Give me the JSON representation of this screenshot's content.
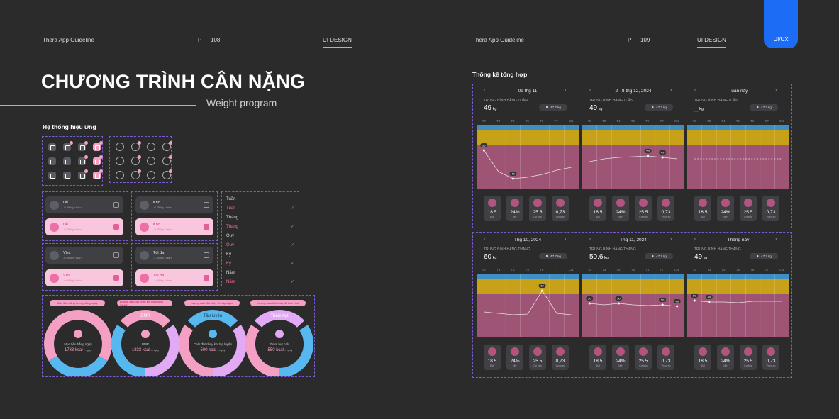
{
  "left_header": {
    "brand": "Thera App Guideline",
    "page_label": "P",
    "page_num": "108",
    "section": "UI DESIGN"
  },
  "right_header": {
    "brand": "Thera App Guideline",
    "page_label": "P",
    "page_num": "109",
    "section": "UI DESIGN"
  },
  "tab_label": "UI/UX",
  "title": "CHƯƠNG TRÌNH CÂN NẶNG",
  "subtitle": "Weight program",
  "effects_heading": "Hệ thống hiệu ứng",
  "stats_heading": "Thống kê tổng hợp",
  "difficulty_cards": [
    {
      "label": "Dễ",
      "sub": "-0.25 kg / tuần",
      "selected": false
    },
    {
      "label": "Khó",
      "sub": "-0.75 kg / tuần",
      "selected": false
    },
    {
      "label": "Dễ",
      "sub": "-0.25 kg / tuần",
      "selected": true
    },
    {
      "label": "Khó",
      "sub": "-0.75 kg / tuần",
      "selected": true
    },
    {
      "label": "Vừa",
      "sub": "-0.50 kg / tuần",
      "selected": false
    },
    {
      "label": "Tối đa",
      "sub": "-1.00 kg / tuần",
      "selected": false
    },
    {
      "label": "Vừa",
      "sub": "-0.50 kg / tuần",
      "selected": true
    },
    {
      "label": "Tối đa",
      "sub": "-1.00 kg / tuần",
      "selected": true
    }
  ],
  "period_list": [
    {
      "label": "Tuần",
      "selected": false
    },
    {
      "label": "Tuần",
      "selected": true
    },
    {
      "label": "Tháng",
      "selected": false
    },
    {
      "label": "Tháng",
      "selected": true
    },
    {
      "label": "Quý",
      "selected": false
    },
    {
      "label": "Quý",
      "selected": true
    },
    {
      "label": "Kỳ",
      "selected": false
    },
    {
      "label": "Kỳ",
      "selected": true
    },
    {
      "label": "Năm",
      "selected": false
    },
    {
      "label": "Năm",
      "selected": true
    }
  ],
  "donuts": [
    {
      "pill": "Mục tiêu năng lượng hằng ngày",
      "top_label": "",
      "center_label": "Mục tiêu hằng ngày",
      "value": "1783 kcal",
      "unit": "/ ngày",
      "accent": "#f4a0c4"
    },
    {
      "pill": "Lượng calo đốt cháy khi nghỉ ngơi (BMR)",
      "top_label": "BMR",
      "center_label": "BMR",
      "value": "1833 kcal",
      "unit": "/ ngày",
      "accent": "#f4a0c4"
    },
    {
      "pill": "Lượng calo đốt cháy khi tập luyện",
      "top_label": "Tập luyện",
      "center_label": "Calo đốt cháy khi tập luyện",
      "value": "500 kcal",
      "unit": "/ ngày",
      "accent": "#64c6f0"
    },
    {
      "pill": "Lượng calo đốt cháy để thâm hụt",
      "top_label": "Thâm hụt",
      "center_label": "Thâm hụt calo",
      "value": "-550 kcal",
      "unit": "/ ngày",
      "accent": "#d9a7f0"
    }
  ],
  "days": [
    "T2",
    "T3",
    "T4",
    "T5",
    "T6",
    "T7",
    "CN"
  ],
  "avg_unit": "kg",
  "panels": [
    {
      "period": "09 thg 11",
      "avg_label": "TRUNG BÌNH HẰNG TUẦN",
      "weight": "49",
      "target": "47.7 kg"
    },
    {
      "period": "2 - 8 thg 12, 2024",
      "avg_label": "TRUNG BÌNH HẰNG TUẦN",
      "weight": "49",
      "target": "47.7 kg"
    },
    {
      "period": "Tuần này",
      "avg_label": "TRUNG BÌNH HẰNG TUẦN",
      "weight": "_",
      "target": "47.7 kg"
    },
    {
      "period": "Thg 10, 2024",
      "avg_label": "TRUNG BÌNH HẰNG THÁNG",
      "weight": "60",
      "target": "47.7 kg"
    },
    {
      "period": "Thg 11, 2024",
      "avg_label": "TRUNG BÌNH HẰNG THÁNG",
      "weight": "50.6",
      "target": "47.7 kg"
    },
    {
      "period": "Tháng này",
      "avg_label": "TRUNG BÌNH HẰNG THÁNG",
      "weight": "49",
      "target": "47.7 kg"
    }
  ],
  "metrics": [
    {
      "value": "18.5",
      "label": "BMI",
      "icon": "person-icon"
    },
    {
      "value": "24%",
      "label": "Mỡ",
      "icon": "fat-icon"
    },
    {
      "value": "25.5",
      "label": "Cơ bắp",
      "icon": "muscle-icon"
    },
    {
      "value": "0,73",
      "label": "Vòng eo",
      "icon": "waist-icon"
    }
  ],
  "chart_data": [
    {
      "type": "line",
      "title": "",
      "x": [
        "T2",
        "T3",
        "T4",
        "T5",
        "T6",
        "T7",
        "CN"
      ],
      "point_labels": [
        "55",
        "",
        "48",
        "",
        "",
        "",
        ""
      ]
    },
    {
      "type": "line",
      "title": "",
      "x": [
        "T2",
        "T3",
        "T4",
        "T5",
        "T6",
        "T7",
        "CN"
      ],
      "point_labels": [
        "",
        "",
        "",
        "",
        "50",
        "49",
        ""
      ]
    },
    {
      "type": "line",
      "title": "",
      "x": [
        "T2",
        "T3",
        "T4",
        "T5",
        "T6",
        "T7",
        "CN"
      ],
      "point_labels": [
        "",
        "",
        "",
        "",
        "",
        "",
        ""
      ]
    },
    {
      "type": "line",
      "title": "",
      "x": [
        "T2",
        "T3",
        "T4",
        "T5",
        "T6",
        "T7",
        "CN"
      ],
      "point_labels": [
        "",
        "",
        "",
        "",
        "60",
        "",
        ""
      ]
    },
    {
      "type": "line",
      "title": "",
      "x": [
        "T2",
        "T3",
        "T4",
        "T5",
        "T6",
        "T7",
        "CN"
      ],
      "point_labels": [
        "50",
        "",
        "50",
        "",
        "",
        "50",
        "49"
      ]
    },
    {
      "type": "line",
      "title": "",
      "x": [
        "T2",
        "T3",
        "T4",
        "T5",
        "T6",
        "T7",
        "CN"
      ],
      "point_labels": [
        "50",
        "49",
        "",
        "",
        "",
        "",
        ""
      ]
    }
  ],
  "colors": {
    "accent_gold": "#e0b52a",
    "accent_blue": "#1d6cf5",
    "pink": "#f4a0c4",
    "chart_pink": "#9e5474",
    "chart_gold": "#c7a118",
    "chart_blue": "#3f8fc4"
  }
}
